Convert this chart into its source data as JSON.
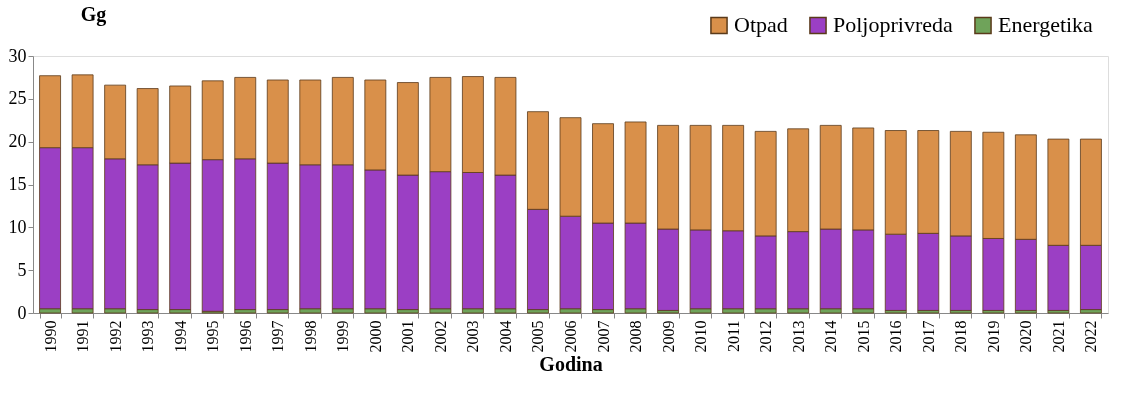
{
  "chart_data": {
    "type": "bar",
    "stacked": true,
    "xlabel": "Godina",
    "ylabel": "Gg",
    "categories": [
      "1990",
      "1991",
      "1992",
      "1993",
      "1994",
      "1995",
      "1996",
      "1997",
      "1998",
      "1999",
      "2000",
      "2001",
      "2002",
      "2003",
      "2004",
      "2005",
      "2006",
      "2007",
      "2008",
      "2009",
      "2010",
      "2011",
      "2012",
      "2013",
      "2014",
      "2015",
      "2016",
      "2017",
      "2018",
      "2019",
      "2020",
      "2021",
      "2022"
    ],
    "series": [
      {
        "name": "Energetika",
        "color": "#6fa35a",
        "values": [
          0.5,
          0.5,
          0.5,
          0.4,
          0.4,
          0.2,
          0.4,
          0.4,
          0.5,
          0.5,
          0.5,
          0.4,
          0.5,
          0.5,
          0.5,
          0.4,
          0.5,
          0.4,
          0.5,
          0.3,
          0.5,
          0.5,
          0.5,
          0.5,
          0.5,
          0.5,
          0.3,
          0.3,
          0.3,
          0.3,
          0.3,
          0.3,
          0.4
        ]
      },
      {
        "name": "Poljoprivreda",
        "color": "#9b3fc4",
        "values": [
          18.8,
          18.8,
          17.5,
          16.9,
          17.1,
          17.7,
          17.6,
          17.1,
          16.8,
          16.8,
          16.2,
          15.7,
          16.0,
          15.9,
          15.6,
          11.7,
          10.8,
          10.1,
          10.0,
          9.5,
          9.2,
          9.1,
          8.5,
          9.0,
          9.3,
          9.2,
          8.9,
          9.0,
          8.7,
          8.4,
          8.3,
          7.6,
          7.5
        ]
      },
      {
        "name": "Otpad",
        "color": "#d9904a",
        "values": [
          8.4,
          8.5,
          8.6,
          8.9,
          9.0,
          9.2,
          9.5,
          9.7,
          9.9,
          10.2,
          10.5,
          10.8,
          11.0,
          11.2,
          11.4,
          11.4,
          11.5,
          11.6,
          11.8,
          12.1,
          12.2,
          12.3,
          12.2,
          12.0,
          12.1,
          11.9,
          12.1,
          12.0,
          12.2,
          12.4,
          12.2,
          12.4,
          12.4
        ]
      }
    ],
    "ylim": [
      0,
      30
    ],
    "yticks": [
      0,
      5,
      10,
      15,
      20,
      25,
      30
    ],
    "grid": false,
    "legend": "top right"
  }
}
